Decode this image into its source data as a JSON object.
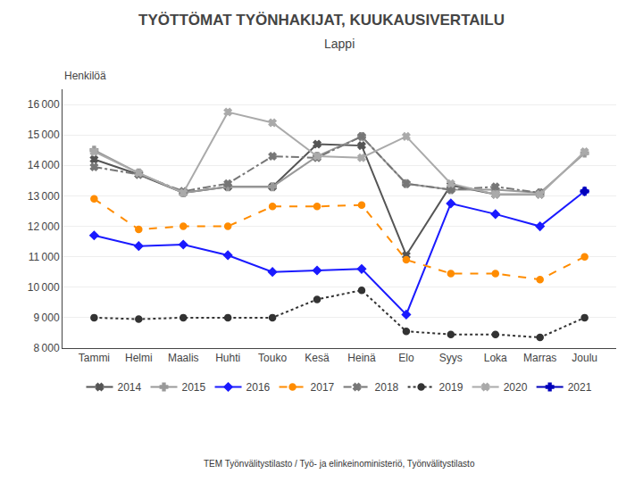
{
  "chart_data": {
    "type": "line",
    "title": "TYÖTTÖMAT TYÖNHAKIJAT, KUUKAUSIVERTAILU",
    "subtitle": "Lappi",
    "ylabel": "Henkilöä",
    "source": "TEM Työnvälitystilasto / Työ- ja elinkeinoministeriö, Työnvälitystilasto",
    "categories": [
      "Tammi",
      "Helmi",
      "Maalis",
      "Huhti",
      "Touko",
      "Kesä",
      "Heinä",
      "Elo",
      "Syys",
      "Loka",
      "Marras",
      "Joulu"
    ],
    "ylim": [
      8000,
      16500
    ],
    "yticks": [
      {
        "value": 8000,
        "label": "8 000"
      },
      {
        "value": 9000,
        "label": "9 000"
      },
      {
        "value": 10000,
        "label": "10 000"
      },
      {
        "value": 11000,
        "label": "11 000"
      },
      {
        "value": 12000,
        "label": "12 000"
      },
      {
        "value": 13000,
        "label": "13 000"
      },
      {
        "value": 14000,
        "label": "14 000"
      },
      {
        "value": 15000,
        "label": "15 000"
      },
      {
        "value": 16000,
        "label": "16 000"
      }
    ],
    "grid": true,
    "legend": "bottom",
    "series": [
      {
        "name": "2014",
        "color": "#555555",
        "marker": "x",
        "line_style": "solid",
        "values": [
          14200,
          13700,
          13100,
          13300,
          13300,
          14700,
          14650,
          11050,
          13350,
          13050,
          13050,
          null
        ]
      },
      {
        "name": "2015",
        "color": "#999999",
        "marker": "plus",
        "line_style": "solid",
        "values": [
          14500,
          13750,
          13100,
          13300,
          13300,
          14300,
          14950,
          13400,
          13200,
          13200,
          13100,
          14400
        ]
      },
      {
        "name": "2016",
        "color": "#1a1aff",
        "marker": "diamond",
        "line_style": "solid",
        "values": [
          11700,
          11350,
          11400,
          11050,
          10500,
          10550,
          10600,
          9100,
          12750,
          12400,
          12000,
          13150
        ]
      },
      {
        "name": "2017",
        "color": "#FF8C00",
        "marker": "circle",
        "line_style": "dash",
        "values": [
          12900,
          11900,
          12000,
          12000,
          12650,
          12650,
          12700,
          10900,
          10450,
          10450,
          10250,
          11000
        ]
      },
      {
        "name": "2018",
        "color": "#777777",
        "marker": "x",
        "line_style": "dashdot",
        "values": [
          13950,
          13700,
          13150,
          13400,
          14300,
          14250,
          14950,
          13400,
          13200,
          13300,
          13100,
          null
        ]
      },
      {
        "name": "2019",
        "color": "#333333",
        "marker": "circle",
        "line_style": "dot",
        "values": [
          9000,
          8950,
          9000,
          9000,
          9000,
          9600,
          9900,
          8550,
          8450,
          8450,
          8350,
          9000
        ]
      },
      {
        "name": "2020",
        "color": "#aaaaaa",
        "marker": "x",
        "line_style": "solid",
        "values": [
          14450,
          13750,
          13100,
          15750,
          15400,
          14300,
          14250,
          14950,
          13400,
          13050,
          13050,
          14450
        ]
      },
      {
        "name": "2021",
        "color": "#0000bb",
        "marker": "plus",
        "line_style": "solid",
        "values": [
          null,
          null,
          null,
          null,
          null,
          null,
          null,
          null,
          null,
          null,
          null,
          13150
        ]
      }
    ]
  }
}
